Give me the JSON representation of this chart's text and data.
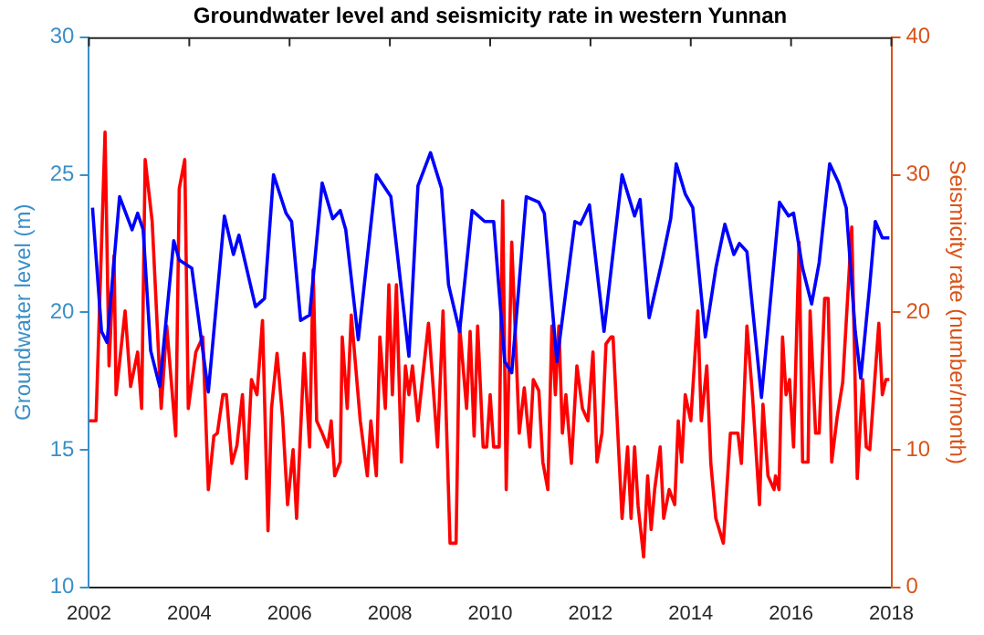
{
  "chart_data": {
    "type": "line",
    "title": "Groundwater level and seismicity rate in western Yunnan",
    "ylabel": "Groundwater level (m)",
    "y2label": "Seismicity rate (number/month)",
    "xlim": [
      2002,
      2018
    ],
    "xticks": [
      2002,
      2004,
      2006,
      2008,
      2010,
      2012,
      2014,
      2016,
      2018
    ],
    "ylim": [
      10,
      30
    ],
    "yticks": [
      10,
      15,
      20,
      25,
      30
    ],
    "y2lim": [
      0,
      40
    ],
    "y2ticks": [
      0,
      10,
      20,
      30,
      40
    ],
    "grid": false,
    "legend": false,
    "marker": "none",
    "line_style": "solid",
    "series": [
      {
        "type": "line",
        "axis": "y",
        "color": "#0000ff",
        "x": [
          2002.07,
          2002.25,
          2002.36,
          2002.61,
          2002.86,
          2002.97,
          2003.08,
          2003.23,
          2003.41,
          2003.69,
          2003.8,
          2004.05,
          2004.38,
          2004.7,
          2004.88,
          2004.99,
          2005.32,
          2005.5,
          2005.68,
          2005.93,
          2006.04,
          2006.22,
          2006.4,
          2006.65,
          2006.86,
          2007.01,
          2007.12,
          2007.37,
          2007.73,
          2008.02,
          2008.38,
          2008.56,
          2008.81,
          2009.03,
          2009.17,
          2009.39,
          2009.64,
          2009.89,
          2010.07,
          2010.29,
          2010.43,
          2010.72,
          2010.97,
          2011.08,
          2011.33,
          2011.69,
          2011.8,
          2011.98,
          2012.27,
          2012.63,
          2012.88,
          2012.99,
          2013.17,
          2013.42,
          2013.6,
          2013.71,
          2013.89,
          2014.04,
          2014.29,
          2014.5,
          2014.68,
          2014.86,
          2014.97,
          2015.12,
          2015.41,
          2015.77,
          2015.95,
          2016.05,
          2016.23,
          2016.41,
          2016.56,
          2016.77,
          2016.95,
          2017.1,
          2017.28,
          2017.39,
          2017.57,
          2017.68,
          2017.82,
          2017.96
        ],
        "values": [
          23.8,
          19.3,
          18.9,
          24.2,
          23.0,
          23.6,
          23.0,
          18.6,
          17.3,
          22.6,
          21.9,
          21.6,
          17.1,
          23.5,
          22.1,
          22.8,
          20.2,
          20.5,
          25.0,
          23.6,
          23.3,
          19.7,
          19.9,
          24.7,
          23.4,
          23.7,
          23.0,
          19.0,
          25.0,
          24.2,
          18.4,
          24.6,
          25.8,
          24.5,
          21.0,
          19.3,
          23.7,
          23.3,
          23.3,
          18.2,
          17.8,
          24.2,
          24.0,
          23.6,
          18.2,
          23.3,
          23.2,
          23.9,
          19.3,
          25.0,
          23.5,
          24.1,
          19.8,
          21.8,
          23.4,
          25.4,
          24.3,
          23.8,
          19.1,
          21.6,
          23.2,
          22.1,
          22.5,
          22.2,
          16.9,
          24.0,
          23.5,
          23.6,
          21.6,
          20.3,
          21.8,
          25.4,
          24.7,
          23.8,
          19.3,
          17.6,
          21.0,
          23.3,
          22.7,
          22.7
        ]
      },
      {
        "type": "line",
        "axis": "y2",
        "color": "#ff0000",
        "x": [
          2002.0,
          2002.14,
          2002.32,
          2002.4,
          2002.5,
          2002.54,
          2002.72,
          2002.83,
          2002.97,
          2003.05,
          2003.12,
          2003.26,
          2003.44,
          2003.55,
          2003.73,
          2003.8,
          2003.91,
          2003.98,
          2004.13,
          2004.27,
          2004.38,
          2004.49,
          2004.56,
          2004.67,
          2004.74,
          2004.85,
          2004.95,
          2005.06,
          2005.14,
          2005.24,
          2005.35,
          2005.46,
          2005.57,
          2005.64,
          2005.75,
          2005.86,
          2005.96,
          2006.07,
          2006.14,
          2006.29,
          2006.4,
          2006.47,
          2006.54,
          2006.65,
          2006.76,
          2006.83,
          2006.9,
          2007.01,
          2007.05,
          2007.15,
          2007.23,
          2007.41,
          2007.55,
          2007.62,
          2007.73,
          2007.8,
          2007.91,
          2007.98,
          2008.05,
          2008.13,
          2008.23,
          2008.31,
          2008.38,
          2008.45,
          2008.56,
          2008.77,
          2008.95,
          2009.06,
          2009.2,
          2009.32,
          2009.39,
          2009.53,
          2009.6,
          2009.68,
          2009.75,
          2009.86,
          2009.93,
          2010.0,
          2010.07,
          2010.18,
          2010.25,
          2010.32,
          2010.43,
          2010.58,
          2010.68,
          2010.79,
          2010.86,
          2010.97,
          2011.05,
          2011.15,
          2011.23,
          2011.3,
          2011.37,
          2011.44,
          2011.51,
          2011.62,
          2011.73,
          2011.84,
          2011.95,
          2012.05,
          2012.13,
          2012.23,
          2012.31,
          2012.41,
          2012.45,
          2012.63,
          2012.74,
          2012.81,
          2012.88,
          2012.95,
          2013.06,
          2013.14,
          2013.21,
          2013.28,
          2013.39,
          2013.46,
          2013.57,
          2013.68,
          2013.75,
          2013.82,
          2013.89,
          2014.0,
          2014.07,
          2014.14,
          2014.21,
          2014.32,
          2014.4,
          2014.5,
          2014.65,
          2014.79,
          2014.94,
          2015.01,
          2015.12,
          2015.23,
          2015.37,
          2015.44,
          2015.54,
          2015.66,
          2015.69,
          2015.76,
          2015.83,
          2015.9,
          2015.97,
          2016.05,
          2016.16,
          2016.23,
          2016.34,
          2016.38,
          2016.49,
          2016.56,
          2016.67,
          2016.74,
          2016.81,
          2016.92,
          2017.03,
          2017.21,
          2017.32,
          2017.43,
          2017.5,
          2017.57,
          2017.75,
          2017.82,
          2017.89,
          2017.96
        ],
        "values": [
          12.1,
          12.1,
          33.1,
          16.1,
          24.1,
          14.0,
          20.1,
          14.6,
          17.1,
          13.0,
          31.1,
          26.6,
          13.0,
          19.0,
          11.0,
          29.0,
          31.1,
          13.0,
          17.1,
          18.2,
          7.1,
          11.0,
          11.2,
          14.0,
          14.0,
          9.0,
          10.3,
          14.0,
          7.9,
          15.1,
          14.0,
          19.4,
          4.1,
          13.0,
          17.0,
          12.4,
          6.0,
          10.0,
          5.0,
          17.0,
          10.2,
          23.1,
          12.1,
          11.2,
          10.2,
          12.1,
          8.1,
          9.1,
          18.2,
          13.0,
          19.8,
          12.1,
          8.1,
          12.1,
          8.1,
          18.2,
          13.0,
          22.0,
          14.0,
          22.0,
          9.1,
          16.1,
          14.0,
          16.1,
          12.1,
          19.2,
          10.2,
          20.1,
          3.2,
          3.2,
          19.0,
          13.0,
          18.6,
          11.0,
          19.0,
          10.2,
          10.2,
          14.0,
          10.2,
          10.2,
          28.1,
          7.1,
          25.1,
          11.2,
          14.5,
          10.2,
          15.1,
          14.3,
          9.1,
          7.1,
          19.0,
          14.0,
          19.0,
          11.2,
          14.0,
          9.0,
          16.1,
          13.0,
          12.1,
          17.1,
          9.1,
          11.2,
          17.7,
          18.2,
          18.2,
          5.0,
          10.2,
          5.0,
          10.2,
          5.9,
          2.2,
          8.1,
          4.2,
          7.1,
          10.2,
          5.0,
          7.1,
          6.0,
          12.1,
          9.1,
          14.0,
          12.1,
          16.1,
          20.1,
          12.1,
          16.1,
          9.0,
          5.0,
          3.2,
          11.2,
          11.2,
          9.0,
          19.0,
          14.0,
          6.0,
          13.3,
          8.1,
          7.1,
          8.1,
          7.1,
          18.2,
          14.0,
          15.1,
          10.2,
          25.1,
          9.1,
          9.1,
          20.1,
          11.2,
          11.2,
          21.0,
          21.0,
          9.1,
          12.4,
          14.9,
          26.2,
          7.9,
          15.1,
          10.2,
          10.0,
          19.2,
          14.0,
          15.1,
          15.1
        ]
      }
    ]
  }
}
